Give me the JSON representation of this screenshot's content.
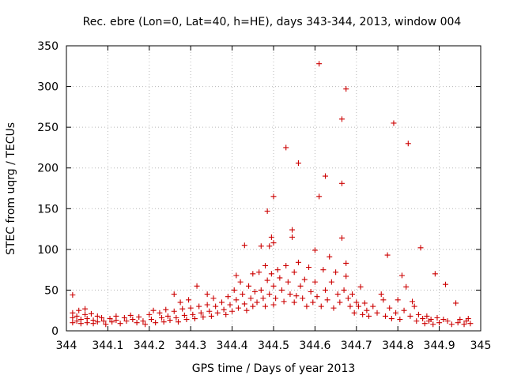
{
  "chart_data": {
    "type": "scatter",
    "title": "Rec. ebre (Lon=0, Lat=40, h=HE), days 343-344, 2013, window 004",
    "xlabel": "GPS time / Days of year 2013",
    "ylabel": "STEC from uqrg / TECUs",
    "xlim": [
      344,
      345
    ],
    "ylim": [
      0,
      350
    ],
    "xticks": [
      344,
      344.1,
      344.2,
      344.3,
      344.4,
      344.5,
      344.6,
      344.7,
      344.8,
      344.9,
      345
    ],
    "xtick_labels": [
      "344",
      "344.1",
      "344.2",
      "344.3",
      "344.4",
      "344.5",
      "344.6",
      "344.7",
      "344.8",
      "344.9",
      "345"
    ],
    "yticks": [
      0,
      50,
      100,
      150,
      200,
      250,
      300,
      350
    ],
    "ytick_labels": [
      "0",
      "50",
      "100",
      "150",
      "200",
      "250",
      "300",
      "350"
    ],
    "grid": true,
    "marker": "+",
    "color": "#cc0000",
    "series": [
      {
        "name": "STEC",
        "points": [
          [
            344.015,
            44
          ],
          [
            344.015,
            22
          ],
          [
            344.015,
            16
          ],
          [
            344.015,
            10
          ],
          [
            344.025,
            18
          ],
          [
            344.025,
            12
          ],
          [
            344.03,
            25
          ],
          [
            344.035,
            14
          ],
          [
            344.035,
            9
          ],
          [
            344.045,
            27
          ],
          [
            344.045,
            20
          ],
          [
            344.05,
            15
          ],
          [
            344.05,
            10
          ],
          [
            344.06,
            21
          ],
          [
            344.065,
            13
          ],
          [
            344.065,
            9
          ],
          [
            344.075,
            18
          ],
          [
            344.075,
            11
          ],
          [
            344.085,
            16
          ],
          [
            344.09,
            12
          ],
          [
            344.095,
            8
          ],
          [
            344.105,
            15
          ],
          [
            344.11,
            11
          ],
          [
            344.12,
            18
          ],
          [
            344.12,
            13
          ],
          [
            344.13,
            9
          ],
          [
            344.14,
            16
          ],
          [
            344.145,
            12
          ],
          [
            344.155,
            19
          ],
          [
            344.16,
            14
          ],
          [
            344.17,
            10
          ],
          [
            344.175,
            17
          ],
          [
            344.185,
            12
          ],
          [
            344.19,
            8
          ],
          [
            344.2,
            20
          ],
          [
            344.205,
            14
          ],
          [
            344.21,
            25
          ],
          [
            344.215,
            10
          ],
          [
            344.225,
            22
          ],
          [
            344.23,
            16
          ],
          [
            344.235,
            11
          ],
          [
            344.24,
            26
          ],
          [
            344.245,
            18
          ],
          [
            344.25,
            13
          ],
          [
            344.26,
            45
          ],
          [
            344.26,
            24
          ],
          [
            344.265,
            16
          ],
          [
            344.27,
            11
          ],
          [
            344.275,
            35
          ],
          [
            344.28,
            27
          ],
          [
            344.285,
            19
          ],
          [
            344.29,
            14
          ],
          [
            344.295,
            38
          ],
          [
            344.3,
            28
          ],
          [
            344.305,
            20
          ],
          [
            344.31,
            15
          ],
          [
            344.315,
            55
          ],
          [
            344.32,
            30
          ],
          [
            344.325,
            22
          ],
          [
            344.33,
            17
          ],
          [
            344.34,
            45
          ],
          [
            344.34,
            32
          ],
          [
            344.345,
            24
          ],
          [
            344.35,
            18
          ],
          [
            344.355,
            40
          ],
          [
            344.36,
            30
          ],
          [
            344.365,
            22
          ],
          [
            344.375,
            35
          ],
          [
            344.38,
            26
          ],
          [
            344.385,
            20
          ],
          [
            344.39,
            42
          ],
          [
            344.395,
            32
          ],
          [
            344.4,
            24
          ],
          [
            344.405,
            50
          ],
          [
            344.41,
            68
          ],
          [
            344.41,
            38
          ],
          [
            344.415,
            28
          ],
          [
            344.42,
            60
          ],
          [
            344.425,
            45
          ],
          [
            344.43,
            105
          ],
          [
            344.43,
            33
          ],
          [
            344.435,
            25
          ],
          [
            344.44,
            55
          ],
          [
            344.445,
            40
          ],
          [
            344.45,
            70
          ],
          [
            344.45,
            30
          ],
          [
            344.455,
            48
          ],
          [
            344.46,
            35
          ],
          [
            344.465,
            72
          ],
          [
            344.47,
            104
          ],
          [
            344.47,
            50
          ],
          [
            344.475,
            40
          ],
          [
            344.48,
            80
          ],
          [
            344.48,
            30
          ],
          [
            344.485,
            147
          ],
          [
            344.485,
            62
          ],
          [
            344.49,
            104
          ],
          [
            344.49,
            45
          ],
          [
            344.495,
            115
          ],
          [
            344.495,
            70
          ],
          [
            344.5,
            165
          ],
          [
            344.5,
            108
          ],
          [
            344.5,
            55
          ],
          [
            344.5,
            32
          ],
          [
            344.505,
            40
          ],
          [
            344.51,
            75
          ],
          [
            344.515,
            65
          ],
          [
            344.52,
            50
          ],
          [
            344.525,
            36
          ],
          [
            344.53,
            225
          ],
          [
            344.53,
            80
          ],
          [
            344.535,
            60
          ],
          [
            344.54,
            45
          ],
          [
            344.545,
            124
          ],
          [
            344.545,
            115
          ],
          [
            344.55,
            72
          ],
          [
            344.55,
            35
          ],
          [
            344.555,
            43
          ],
          [
            344.56,
            206
          ],
          [
            344.56,
            84
          ],
          [
            344.565,
            55
          ],
          [
            344.57,
            40
          ],
          [
            344.575,
            63
          ],
          [
            344.58,
            30
          ],
          [
            344.585,
            78
          ],
          [
            344.59,
            48
          ],
          [
            344.595,
            35
          ],
          [
            344.6,
            99
          ],
          [
            344.6,
            60
          ],
          [
            344.605,
            42
          ],
          [
            344.61,
            328
          ],
          [
            344.61,
            165
          ],
          [
            344.615,
            30
          ],
          [
            344.62,
            75
          ],
          [
            344.625,
            190
          ],
          [
            344.625,
            50
          ],
          [
            344.63,
            38
          ],
          [
            344.635,
            91
          ],
          [
            344.64,
            60
          ],
          [
            344.645,
            28
          ],
          [
            344.65,
            72
          ],
          [
            344.655,
            45
          ],
          [
            344.66,
            35
          ],
          [
            344.665,
            260
          ],
          [
            344.665,
            181
          ],
          [
            344.665,
            114
          ],
          [
            344.67,
            50
          ],
          [
            344.675,
            297
          ],
          [
            344.675,
            83
          ],
          [
            344.675,
            67
          ],
          [
            344.68,
            40
          ],
          [
            344.685,
            30
          ],
          [
            344.69,
            45
          ],
          [
            344.695,
            22
          ],
          [
            344.7,
            35
          ],
          [
            344.705,
            30
          ],
          [
            344.71,
            54
          ],
          [
            344.715,
            20
          ],
          [
            344.72,
            34
          ],
          [
            344.725,
            25
          ],
          [
            344.73,
            18
          ],
          [
            344.74,
            30
          ],
          [
            344.75,
            22
          ],
          [
            344.76,
            45
          ],
          [
            344.765,
            38
          ],
          [
            344.77,
            18
          ],
          [
            344.775,
            93
          ],
          [
            344.78,
            28
          ],
          [
            344.785,
            15
          ],
          [
            344.79,
            255
          ],
          [
            344.795,
            22
          ],
          [
            344.8,
            38
          ],
          [
            344.805,
            14
          ],
          [
            344.81,
            68
          ],
          [
            344.815,
            25
          ],
          [
            344.82,
            54
          ],
          [
            344.825,
            230
          ],
          [
            344.83,
            18
          ],
          [
            344.835,
            36
          ],
          [
            344.84,
            30
          ],
          [
            344.845,
            12
          ],
          [
            344.85,
            20
          ],
          [
            344.855,
            102
          ],
          [
            344.86,
            15
          ],
          [
            344.865,
            9
          ],
          [
            344.87,
            18
          ],
          [
            344.875,
            12
          ],
          [
            344.88,
            14
          ],
          [
            344.885,
            8
          ],
          [
            344.89,
            70
          ],
          [
            344.895,
            16
          ],
          [
            344.9,
            10
          ],
          [
            344.91,
            14
          ],
          [
            344.915,
            57
          ],
          [
            344.92,
            12
          ],
          [
            344.93,
            8
          ],
          [
            344.94,
            34
          ],
          [
            344.945,
            10
          ],
          [
            344.95,
            14
          ],
          [
            344.96,
            8
          ],
          [
            344.965,
            12
          ],
          [
            344.97,
            15
          ],
          [
            344.975,
            9
          ]
        ]
      }
    ]
  }
}
